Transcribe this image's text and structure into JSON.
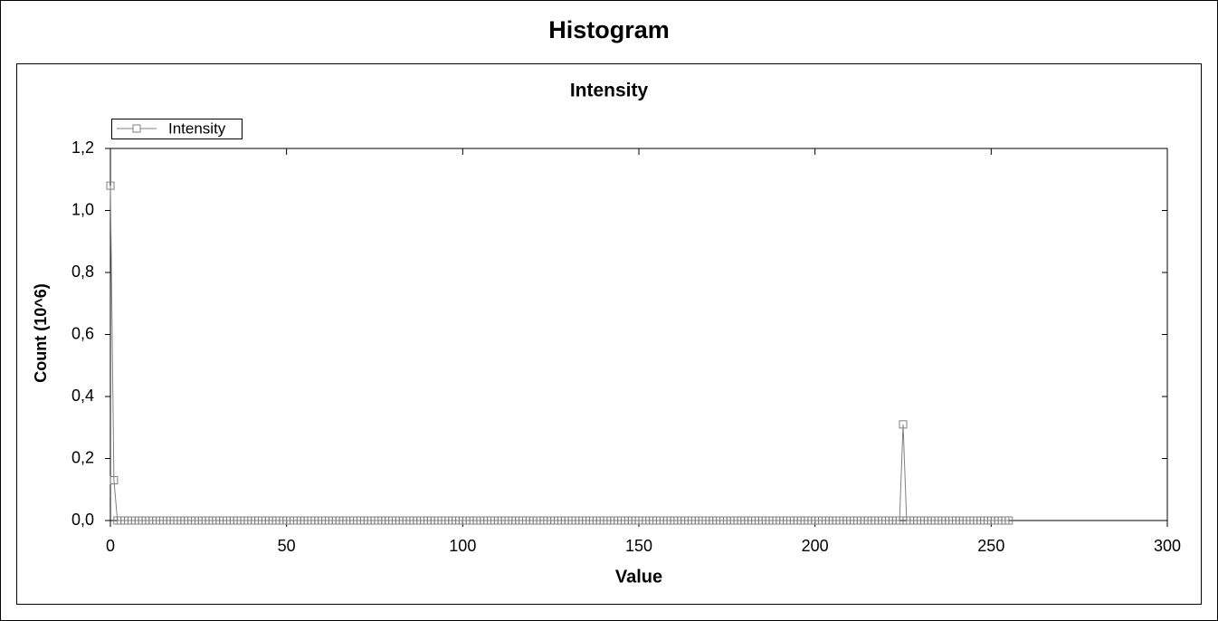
{
  "chart_data": {
    "type": "line",
    "title": "Histogram",
    "subtitle": "Intensity",
    "x_label": "Value",
    "y_label": "Count (10^6)",
    "legend": "upper left",
    "xlim": [
      0,
      300
    ],
    "xticks": [
      0,
      50,
      100,
      150,
      200,
      250,
      300
    ],
    "ylim": [
      0,
      1.2
    ],
    "yticks": [
      {
        "value": 0,
        "label": "0,0"
      },
      {
        "value": 0.2,
        "label": "0,2"
      },
      {
        "value": 0.4,
        "label": "0,4"
      },
      {
        "value": 0.6,
        "label": "0,6"
      },
      {
        "value": 0.8,
        "label": "0,8"
      },
      {
        "value": 1.0,
        "label": "1,0"
      },
      {
        "value": 1.2,
        "label": "1,2"
      }
    ],
    "x": [
      0,
      1,
      2,
      3,
      4,
      5,
      6,
      7,
      8,
      9,
      10,
      11,
      12,
      13,
      14,
      15,
      16,
      17,
      18,
      19,
      20,
      21,
      22,
      23,
      24,
      25,
      26,
      27,
      28,
      29,
      30,
      31,
      32,
      33,
      34,
      35,
      36,
      37,
      38,
      39,
      40,
      41,
      42,
      43,
      44,
      45,
      46,
      47,
      48,
      49,
      50,
      51,
      52,
      53,
      54,
      55,
      56,
      57,
      58,
      59,
      60,
      61,
      62,
      63,
      64,
      65,
      66,
      67,
      68,
      69,
      70,
      71,
      72,
      73,
      74,
      75,
      76,
      77,
      78,
      79,
      80,
      81,
      82,
      83,
      84,
      85,
      86,
      87,
      88,
      89,
      90,
      91,
      92,
      93,
      94,
      95,
      96,
      97,
      98,
      99,
      100,
      101,
      102,
      103,
      104,
      105,
      106,
      107,
      108,
      109,
      110,
      111,
      112,
      113,
      114,
      115,
      116,
      117,
      118,
      119,
      120,
      121,
      122,
      123,
      124,
      125,
      126,
      127,
      128,
      129,
      130,
      131,
      132,
      133,
      134,
      135,
      136,
      137,
      138,
      139,
      140,
      141,
      142,
      143,
      144,
      145,
      146,
      147,
      148,
      149,
      150,
      151,
      152,
      153,
      154,
      155,
      156,
      157,
      158,
      159,
      160,
      161,
      162,
      163,
      164,
      165,
      166,
      167,
      168,
      169,
      170,
      171,
      172,
      173,
      174,
      175,
      176,
      177,
      178,
      179,
      180,
      181,
      182,
      183,
      184,
      185,
      186,
      187,
      188,
      189,
      190,
      191,
      192,
      193,
      194,
      195,
      196,
      197,
      198,
      199,
      200,
      201,
      202,
      203,
      204,
      205,
      206,
      207,
      208,
      209,
      210,
      211,
      212,
      213,
      214,
      215,
      216,
      217,
      218,
      219,
      220,
      221,
      222,
      223,
      224,
      225,
      226,
      227,
      228,
      229,
      230,
      231,
      232,
      233,
      234,
      235,
      236,
      237,
      238,
      239,
      240,
      241,
      242,
      243,
      244,
      245,
      246,
      247,
      248,
      249,
      250,
      251,
      252,
      253,
      254,
      255
    ],
    "series": [
      {
        "name": "Intensity",
        "color": "#808080",
        "values": [
          1.08,
          0.13,
          0,
          0,
          0,
          0,
          0,
          0,
          0,
          0,
          0,
          0,
          0,
          0,
          0,
          0,
          0,
          0,
          0,
          0,
          0,
          0,
          0,
          0,
          0,
          0,
          0,
          0,
          0,
          0,
          0,
          0,
          0,
          0,
          0,
          0,
          0,
          0,
          0,
          0,
          0,
          0,
          0,
          0,
          0,
          0,
          0,
          0,
          0,
          0,
          0,
          0,
          0,
          0,
          0,
          0,
          0,
          0,
          0,
          0,
          0,
          0,
          0,
          0,
          0,
          0,
          0,
          0,
          0,
          0,
          0,
          0,
          0,
          0,
          0,
          0,
          0,
          0,
          0,
          0,
          0,
          0,
          0,
          0,
          0,
          0,
          0,
          0,
          0,
          0,
          0,
          0,
          0,
          0,
          0,
          0,
          0,
          0,
          0,
          0,
          0,
          0,
          0,
          0,
          0,
          0,
          0,
          0,
          0,
          0,
          0,
          0,
          0,
          0,
          0,
          0,
          0,
          0,
          0,
          0,
          0,
          0,
          0,
          0,
          0,
          0,
          0,
          0,
          0,
          0,
          0,
          0,
          0,
          0,
          0,
          0,
          0,
          0,
          0,
          0,
          0,
          0,
          0,
          0,
          0,
          0,
          0,
          0,
          0,
          0,
          0,
          0,
          0,
          0,
          0,
          0,
          0,
          0,
          0,
          0,
          0,
          0,
          0,
          0,
          0,
          0,
          0,
          0,
          0,
          0,
          0,
          0,
          0,
          0,
          0,
          0,
          0,
          0,
          0,
          0,
          0,
          0,
          0,
          0,
          0,
          0,
          0,
          0,
          0,
          0,
          0,
          0,
          0,
          0,
          0,
          0,
          0,
          0,
          0,
          0,
          0,
          0,
          0,
          0,
          0,
          0,
          0,
          0,
          0,
          0,
          0,
          0,
          0,
          0,
          0,
          0,
          0,
          0,
          0,
          0,
          0,
          0,
          0,
          0,
          0,
          0.31,
          0,
          0,
          0,
          0,
          0,
          0,
          0,
          0,
          0,
          0,
          0,
          0,
          0,
          0,
          0,
          0,
          0,
          0,
          0,
          0,
          0,
          0,
          0,
          0,
          0,
          0,
          0,
          0,
          0,
          0
        ]
      }
    ]
  }
}
